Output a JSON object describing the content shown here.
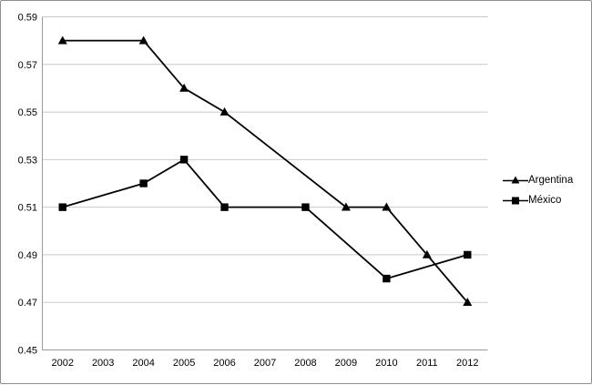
{
  "chart_data": {
    "type": "line",
    "title": "",
    "xlabel": "",
    "ylabel": "",
    "x_categories": [
      "2002",
      "2003",
      "2004",
      "2005",
      "2006",
      "2007",
      "2008",
      "2009",
      "2010",
      "2011",
      "2012"
    ],
    "series": [
      {
        "name": "Argentina",
        "marker": "triangle",
        "values": [
          0.58,
          null,
          0.58,
          0.56,
          0.55,
          null,
          null,
          0.51,
          0.51,
          0.49,
          0.47
        ]
      },
      {
        "name": "México",
        "marker": "square",
        "values": [
          0.51,
          null,
          0.52,
          0.53,
          0.51,
          null,
          0.51,
          null,
          0.48,
          null,
          0.49
        ]
      }
    ],
    "y_ticks": [
      "0.59",
      "0.57",
      "0.55",
      "0.53",
      "0.51",
      "0.49",
      "0.47",
      "0.45"
    ],
    "ylim": [
      0.45,
      0.59
    ],
    "grid": "horizontal-only",
    "legend_position": "right-middle",
    "line_color": "#000000",
    "marker_color": "#000000",
    "gridline_color": "#c9c9c9",
    "axis_color": "#9a9a9a",
    "text_color": "#000000",
    "background_color": "#ffffff",
    "border_color": "#8f8f8f"
  }
}
